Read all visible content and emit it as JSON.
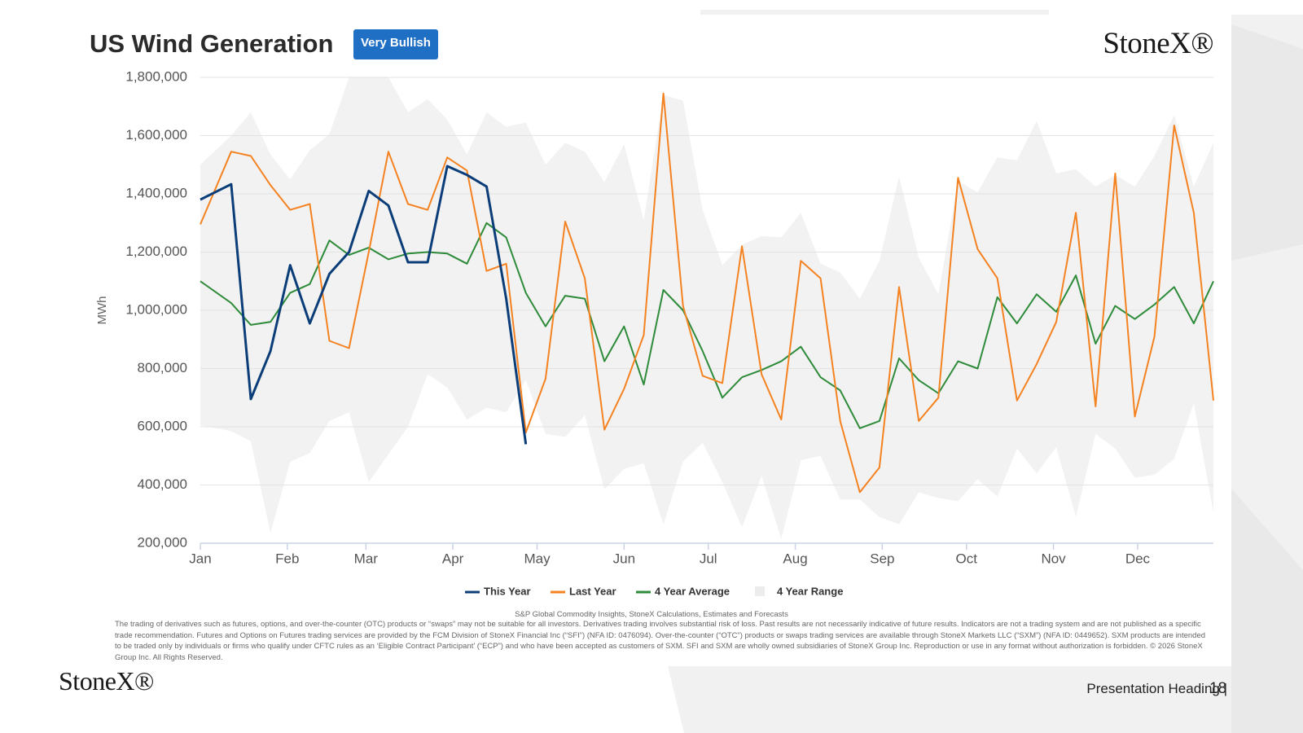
{
  "title": "US Wind Generation",
  "badge": "Very Bullish",
  "logo": "StoneX®",
  "source": "S&P Global Commodity Insights, StoneX Calculations, Estimates and Forecasts",
  "disclaimer": "The trading of derivatives such as futures, options, and over-the-counter (OTC) products or “swaps” may not be suitable for all investors. Derivatives trading involves substantial risk of loss. Past results are not necessarily indicative of future results. Indicators are not a trading system and are not published as a specific trade recommendation. Futures and Options on Futures trading services are provided by the FCM Division of StoneX Financial Inc (“SFI”) (NFA ID: 0476094). Over-the-counter (“OTC”) products or swaps trading services are available through StoneX Markets LLC (“SXM”) (NFA ID: 0449652). SXM products are intended to be traded only by individuals or firms who qualify under CFTC rules as an ‘Eligible Contract Participant’ (“ECP”) and who have been accepted as customers of SXM. SFI and SXM are wholly owned subsidiaries of StoneX Group Inc. Reproduction or use in any format without authorization is forbidden. © 2026 StoneX Group Inc. All Rights Reserved.",
  "footer": "Presentation Heading |",
  "page_number": "18",
  "chart_data": {
    "type": "line",
    "y_label": "MWh",
    "grid": true,
    "legend": "bottom",
    "x": [
      0,
      11,
      18,
      25,
      32,
      39,
      46,
      53,
      60,
      67,
      74,
      81,
      88,
      95,
      102,
      109,
      116,
      123,
      130,
      137,
      144,
      151,
      158,
      165,
      172,
      179,
      186,
      193,
      200,
      207,
      214,
      221,
      228,
      235,
      242,
      249,
      256,
      263,
      270,
      277,
      284,
      291,
      298,
      305,
      312,
      319,
      326,
      333,
      340,
      347,
      354,
      361
    ],
    "xlim": [
      0,
      361
    ],
    "xticks": [
      {
        "value": 0,
        "label": "Jan"
      },
      {
        "value": 31,
        "label": "Feb"
      },
      {
        "value": 59,
        "label": "Mar"
      },
      {
        "value": 90,
        "label": "Apr"
      },
      {
        "value": 120,
        "label": "May"
      },
      {
        "value": 151,
        "label": "Jun"
      },
      {
        "value": 181,
        "label": "Jul"
      },
      {
        "value": 212,
        "label": "Aug"
      },
      {
        "value": 243,
        "label": "Sep"
      },
      {
        "value": 273,
        "label": "Oct"
      },
      {
        "value": 304,
        "label": "Nov"
      },
      {
        "value": 334,
        "label": "Dec"
      }
    ],
    "ylim": [
      200000,
      1800000
    ],
    "yticks": [
      {
        "value": 200000,
        "label": "200,000"
      },
      {
        "value": 400000,
        "label": "400,000"
      },
      {
        "value": 600000,
        "label": "600,000"
      },
      {
        "value": 800000,
        "label": "800,000"
      },
      {
        "value": 1000000,
        "label": "1,000,000"
      },
      {
        "value": 1200000,
        "label": "1,200,000"
      },
      {
        "value": 1400000,
        "label": "1,400,000"
      },
      {
        "value": 1600000,
        "label": "1,600,000"
      },
      {
        "value": 1800000,
        "label": "1,800,000"
      }
    ],
    "series": [
      {
        "name": "This Year",
        "color": "#0b3d78",
        "values": [
          1380000,
          1433000,
          695000,
          860000,
          1155000,
          955000,
          1125000,
          1200000,
          1410000,
          1360000,
          1165000,
          1165000,
          1495000,
          1465000,
          1425000,
          1040000,
          540000,
          null,
          null,
          null,
          null,
          null,
          null,
          null,
          null,
          null,
          null,
          null,
          null,
          null,
          null,
          null,
          null,
          null,
          null,
          null,
          null,
          null,
          null,
          null,
          null,
          null,
          null,
          null,
          null,
          null,
          null,
          null,
          null,
          null,
          null,
          null
        ]
      },
      {
        "name": "Last Year",
        "color": "#f58220",
        "values": [
          1295000,
          1545000,
          1530000,
          1430000,
          1345000,
          1365000,
          895000,
          870000,
          1200000,
          1545000,
          1365000,
          1345000,
          1525000,
          1480000,
          1135000,
          1160000,
          580000,
          765000,
          1305000,
          1110000,
          590000,
          730000,
          915000,
          1745000,
          1015000,
          775000,
          750000,
          1220000,
          780000,
          625000,
          1170000,
          1110000,
          620000,
          375000,
          460000,
          1080000,
          620000,
          700000,
          1455000,
          1210000,
          1110000,
          690000,
          815000,
          960000,
          1335000,
          670000,
          1470000,
          635000,
          910000,
          1635000,
          1335000,
          690000
        ]
      },
      {
        "name": "4 Year Average",
        "color": "#2e8b3a",
        "values": [
          1100000,
          1025000,
          950000,
          960000,
          1060000,
          1090000,
          1240000,
          1190000,
          1215000,
          1175000,
          1195000,
          1200000,
          1195000,
          1160000,
          1300000,
          1250000,
          1060000,
          945000,
          1050000,
          1040000,
          825000,
          945000,
          745000,
          1070000,
          1000000,
          860000,
          700000,
          770000,
          795000,
          825000,
          875000,
          770000,
          725000,
          595000,
          620000,
          835000,
          760000,
          715000,
          825000,
          800000,
          1045000,
          955000,
          1055000,
          995000,
          1120000,
          885000,
          1015000,
          970000,
          1020000,
          1080000,
          955000,
          1100000
        ]
      },
      {
        "name": "4 Year Range",
        "color": "#f2f2f2",
        "kind": "range",
        "low": [
          605000,
          585000,
          550000,
          235000,
          480000,
          510000,
          620000,
          650000,
          410000,
          505000,
          600000,
          780000,
          735000,
          625000,
          665000,
          650000,
          760000,
          575000,
          565000,
          640000,
          385000,
          455000,
          475000,
          265000,
          480000,
          545000,
          410000,
          255000,
          430000,
          215000,
          485000,
          500000,
          350000,
          350000,
          290000,
          265000,
          375000,
          355000,
          345000,
          420000,
          360000,
          525000,
          440000,
          530000,
          290000,
          575000,
          525000,
          425000,
          435000,
          490000,
          680000,
          305000
        ],
        "high": [
          1500000,
          1600000,
          1680000,
          1535000,
          1450000,
          1550000,
          1605000,
          1800000,
          1800000,
          1800000,
          1680000,
          1725000,
          1655000,
          1535000,
          1680000,
          1630000,
          1645000,
          1500000,
          1575000,
          1545000,
          1440000,
          1570000,
          1310000,
          1740000,
          1720000,
          1345000,
          1155000,
          1225000,
          1255000,
          1250000,
          1335000,
          1160000,
          1130000,
          1040000,
          1170000,
          1460000,
          1180000,
          1055000,
          1445000,
          1405000,
          1525000,
          1515000,
          1650000,
          1470000,
          1485000,
          1425000,
          1465000,
          1425000,
          1530000,
          1670000,
          1425000,
          1575000
        ]
      }
    ]
  }
}
